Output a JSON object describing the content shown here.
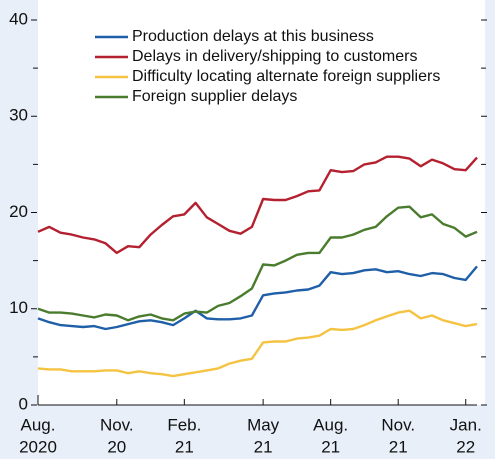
{
  "chart_data": {
    "type": "line",
    "categories": [
      "Aug.",
      null,
      null,
      null,
      null,
      null,
      null,
      "Nov.",
      null,
      null,
      null,
      null,
      null,
      "Feb.",
      null,
      null,
      null,
      null,
      null,
      null,
      "May",
      null,
      null,
      null,
      null,
      null,
      "Aug.",
      null,
      null,
      null,
      null,
      null,
      "Nov.",
      null,
      null,
      null,
      null,
      null,
      "Jan.",
      null
    ],
    "category_years": [
      "2020",
      null,
      null,
      null,
      null,
      null,
      null,
      "20",
      null,
      null,
      null,
      null,
      null,
      "21",
      null,
      null,
      null,
      null,
      null,
      null,
      "21",
      null,
      null,
      null,
      null,
      null,
      "21",
      null,
      null,
      null,
      null,
      null,
      "21",
      null,
      null,
      null,
      null,
      null,
      "22",
      null
    ],
    "series": [
      {
        "name": "Production delays at this business",
        "color": "#1f5fa8",
        "values": [
          9.0,
          8.6,
          8.3,
          8.2,
          8.1,
          8.2,
          7.9,
          8.1,
          8.4,
          8.7,
          8.8,
          8.6,
          8.3,
          9.0,
          9.8,
          9.0,
          8.9,
          8.9,
          9.0,
          9.3,
          11.4,
          11.6,
          11.7,
          11.9,
          12.0,
          12.4,
          13.8,
          13.6,
          13.7,
          14.0,
          14.1,
          13.8,
          13.9,
          13.6,
          13.4,
          13.7,
          13.6,
          13.2,
          13.0,
          14.4
        ]
      },
      {
        "name": "Delays in delivery/shipping to customers",
        "color": "#b4202f",
        "values": [
          18.0,
          18.5,
          17.9,
          17.7,
          17.4,
          17.2,
          16.8,
          15.8,
          16.5,
          16.4,
          17.7,
          18.7,
          19.6,
          19.8,
          21.0,
          19.5,
          18.8,
          18.1,
          17.8,
          18.5,
          21.4,
          21.3,
          21.3,
          21.7,
          22.2,
          22.3,
          24.4,
          24.2,
          24.3,
          25.0,
          25.2,
          25.8,
          25.8,
          25.6,
          24.8,
          25.5,
          25.1,
          24.5,
          24.4,
          25.7
        ]
      },
      {
        "name": "Difficulty locating alternate foreign suppliers",
        "color": "#f5c342",
        "values": [
          3.8,
          3.7,
          3.7,
          3.5,
          3.5,
          3.5,
          3.6,
          3.6,
          3.3,
          3.5,
          3.3,
          3.2,
          3.0,
          3.2,
          3.4,
          3.6,
          3.8,
          4.3,
          4.6,
          4.8,
          6.5,
          6.6,
          6.6,
          6.9,
          7.0,
          7.2,
          7.9,
          7.8,
          7.9,
          8.3,
          8.8,
          9.2,
          9.6,
          9.8,
          9.0,
          9.3,
          8.8,
          8.5,
          8.2,
          8.4
        ]
      },
      {
        "name": "Foreign supplier delays",
        "color": "#4a7c2e",
        "values": [
          10.0,
          9.6,
          9.6,
          9.5,
          9.3,
          9.1,
          9.4,
          9.3,
          8.8,
          9.2,
          9.4,
          9.0,
          8.8,
          9.5,
          9.7,
          9.6,
          10.3,
          10.6,
          11.3,
          12.1,
          14.6,
          14.5,
          15.0,
          15.6,
          15.8,
          15.8,
          17.4,
          17.4,
          17.7,
          18.2,
          18.5,
          19.6,
          20.5,
          20.6,
          19.5,
          19.8,
          18.8,
          18.4,
          17.5,
          18.0
        ]
      }
    ],
    "ylim": [
      0,
      40
    ],
    "yticks": [
      0,
      10,
      20,
      30,
      40
    ],
    "y_minor_ticks": [
      5,
      15,
      25,
      35
    ],
    "legend": "upper left"
  }
}
